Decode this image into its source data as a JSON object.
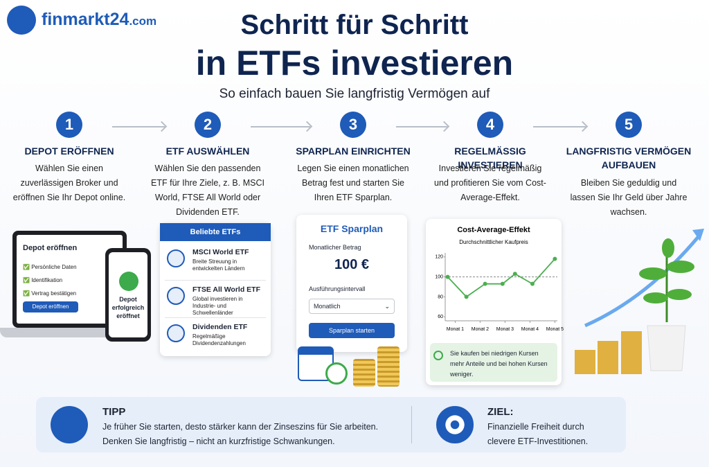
{
  "header": {
    "logo": "finmarkt24",
    "logo_suffix": ".com",
    "title_line1": "Schritt für Schritt",
    "title_line2": "in ETFs investieren",
    "subtitle": "So einfach bauen Sie langfristig Vermögen auf"
  },
  "steps": [
    {
      "number": 1,
      "title": "DEPOT ERÖFFNEN",
      "text": "Wählen Sie einen zuverlässigen Broker und eröffnen Sie Ihr Depot online."
    },
    {
      "number": 2,
      "title": "ETF AUSWÄHLEN",
      "text": "Wählen Sie den passenden ETF für Ihre Ziele, z. B. MSCI World, FTSE All World oder Dividenden ETF."
    },
    {
      "number": 3,
      "title": "SPARPLAN EINRICHTEN",
      "text": "Legen Sie einen monatlichen Betrag fest und starten Sie Ihren ETF Sparplan."
    },
    {
      "number": 4,
      "title": "REGELMÄSSIG INVESTIEREN",
      "text": "Investieren Sie regelmäßig und profitieren Sie vom Cost-Average-Effekt."
    },
    {
      "number": 5,
      "title": "LANGFRISTIG VERMÖGEN AUFBAUEN",
      "text": "Bleiben Sie geduldig und lassen Sie Ihr Geld über Jahre wachsen."
    }
  ],
  "depot_card": {
    "title": "Depot eröffnen",
    "items": [
      "Persönliche Daten",
      "Identifikation",
      "Vertrag bestätigen"
    ],
    "button": "Depot eröffnen",
    "phone_text": "Depot erfolgreich eröffnet"
  },
  "etf_card": {
    "title": "Beliebte ETFs",
    "items": [
      {
        "name": "MSCI World ETF",
        "desc": "Breite Streuung in entwickelten Ländern"
      },
      {
        "name": "FTSE All World ETF",
        "desc": "Global investieren in Industrie- und Schwellenländer"
      },
      {
        "name": "Dividenden ETF",
        "desc": "Regelmäßige Dividendenzahlungen"
      }
    ]
  },
  "sparplan_card": {
    "title": "ETF Sparplan",
    "amount_label": "Monatlicher Betrag",
    "amount": "100 €",
    "interval_label": "Ausführungsintervall",
    "interval": "Monatlich",
    "button": "Sparplan starten"
  },
  "chart_data": {
    "type": "line",
    "title": "Cost-Average-Effekt",
    "subtitle": "Durchschnittlicher Kaufpreis",
    "x": [
      0.7,
      1.45,
      2.2,
      2.9,
      3.4,
      4.1,
      5
    ],
    "series": [
      {
        "color": "#4caf50",
        "values": [
          100,
          80,
          93,
          93,
          103,
          93,
          118
        ]
      }
    ],
    "xlim": [
      0.6,
      5.1
    ],
    "ylim": [
      56,
      124
    ],
    "xticks": [
      {
        "value": 1,
        "label": "Monat 1"
      },
      {
        "value": 2,
        "label": "Monat 2"
      },
      {
        "value": 3,
        "label": "Monat 3"
      },
      {
        "value": 4,
        "label": "Monat 4"
      },
      {
        "value": 5,
        "label": "Monat 5"
      }
    ],
    "yticks": [
      60,
      80,
      100,
      120
    ],
    "reference_line": 100
  },
  "chart_note": "Sie kaufen bei niedrigen Kursen mehr Anteile und bei hohen Kursen weniger.",
  "footer": {
    "tip_title": "TIPP",
    "tip_text": "Je früher Sie starten, desto stärker kann der Zinseszins für Sie arbeiten. Denken Sie langfristig – nicht an kurzfristige Schwankungen.",
    "goal_title": "ZIEL:",
    "goal_text": "Finanzielle Freiheit durch clevere ETF-Investitionen."
  }
}
